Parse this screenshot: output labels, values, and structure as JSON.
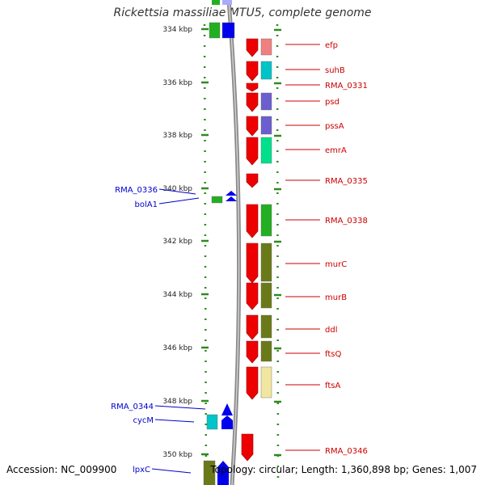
{
  "title": "Rickettsia massiliae MTU5, complete genome",
  "footer": {
    "accession": "Accession: NC_009900",
    "topology": "Topology: circular; Length: 1,360,898 bp; Genes: 1,007"
  },
  "colors": {
    "ruler": "#2e8b1e",
    "backbone": "#8a8a8a",
    "forward_gene": "#0000ee",
    "reverse_gene": "#ee0000",
    "label_right": "#cc0000",
    "label_left": "#0000cc"
  },
  "ruler_ticks": [
    {
      "label": "334 kbp"
    },
    {
      "label": "336 kbp"
    },
    {
      "label": "338 kbp"
    },
    {
      "label": "340 kbp"
    },
    {
      "label": "342 kbp"
    },
    {
      "label": "344 kbp"
    },
    {
      "label": "346 kbp"
    },
    {
      "label": "348 kbp"
    },
    {
      "label": "350 kbp"
    }
  ],
  "right_genes": [
    {
      "label": "efp"
    },
    {
      "label": "suhB"
    },
    {
      "label": "RMA_0331"
    },
    {
      "label": "psd"
    },
    {
      "label": "pssA"
    },
    {
      "label": "emrA"
    },
    {
      "label": "RMA_0335"
    },
    {
      "label": "RMA_0338"
    },
    {
      "label": "murC"
    },
    {
      "label": "murB"
    },
    {
      "label": "ddl"
    },
    {
      "label": "ftsQ"
    },
    {
      "label": "ftsA"
    },
    {
      "label": "RMA_0346"
    }
  ],
  "left_genes": [
    {
      "label": "RMA_0336"
    },
    {
      "label": "bolA1"
    },
    {
      "label": "RMA_0344"
    },
    {
      "label": "cycM"
    },
    {
      "label": "lpxC"
    }
  ]
}
